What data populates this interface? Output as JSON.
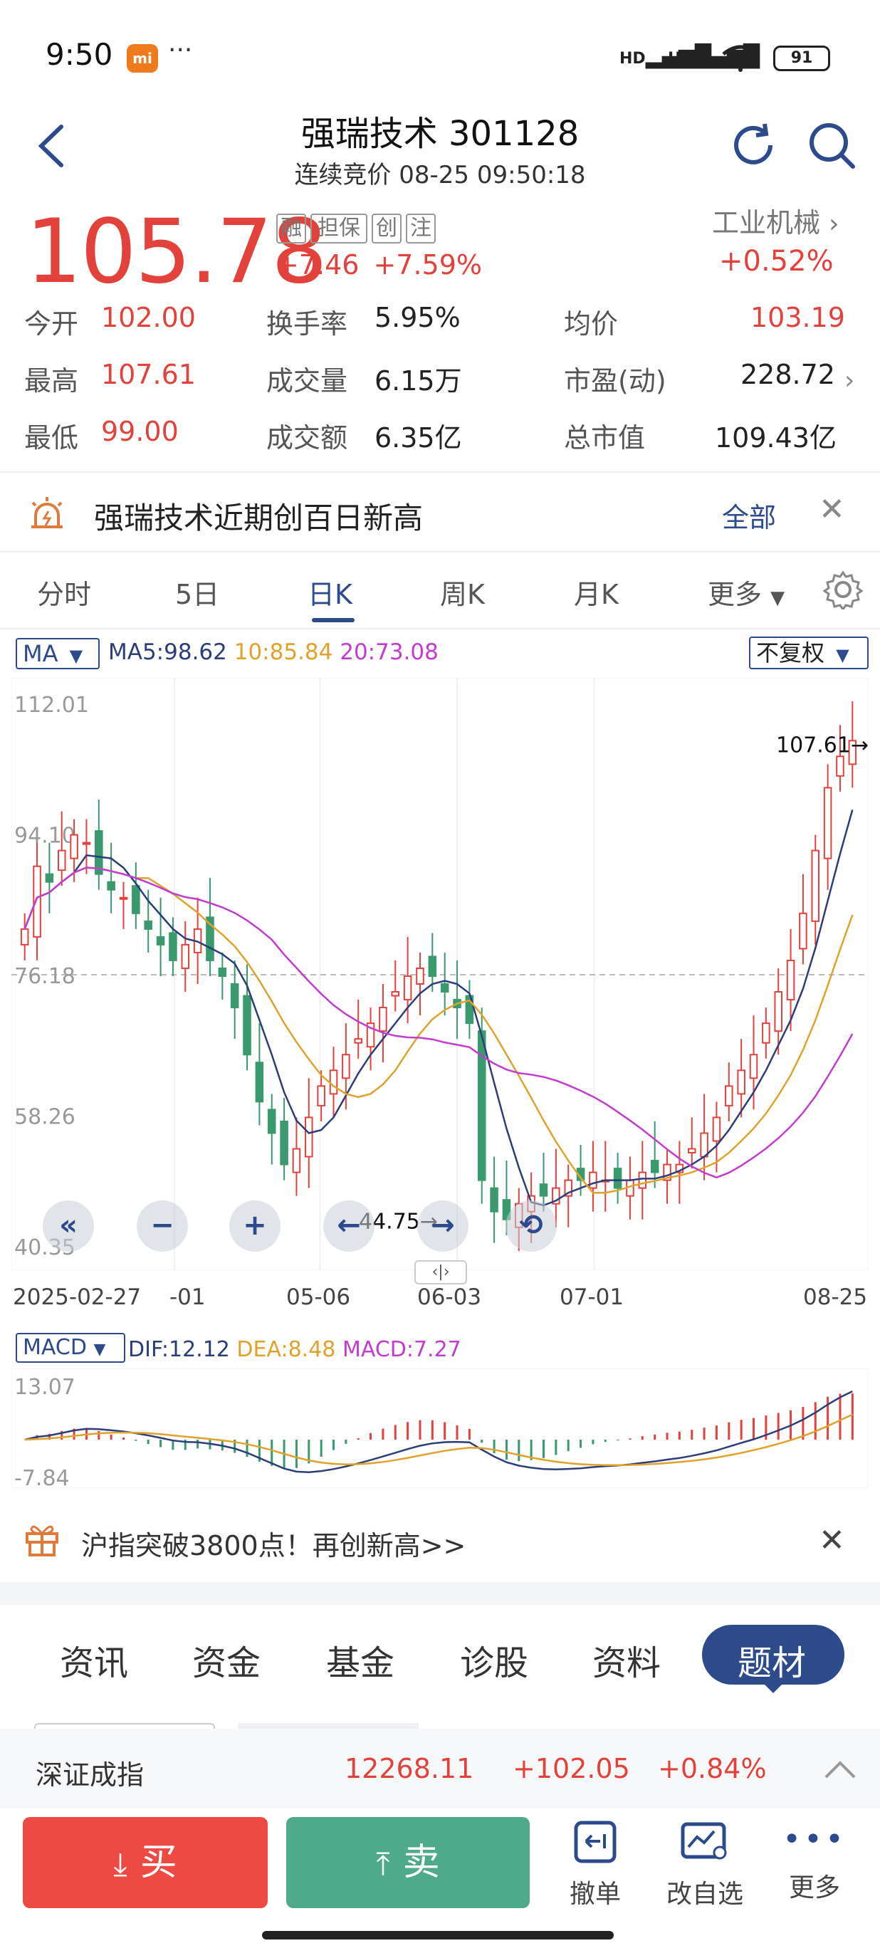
{
  "status_bar": {
    "time": "9:50",
    "logo": "mi",
    "dots": "···",
    "network1": "HD",
    "network2": "HD",
    "battery": "91"
  },
  "header": {
    "title": "强瑞技术 301128",
    "subtitle": "连续竞价 08-25 09:50:18"
  },
  "quote": {
    "price": "105.78",
    "tags": [
      "融",
      "担保",
      "创",
      "注"
    ],
    "change": "+7.46",
    "change_pct": "+7.59%",
    "industry": "工业机械",
    "industry_chg": "+0.52%"
  },
  "stats": [
    {
      "label": "今开",
      "value": "102.00",
      "color": "red"
    },
    {
      "label": "换手率",
      "value": "5.95%",
      "color": "dark"
    },
    {
      "label": "均价",
      "value": "103.19",
      "color": "red"
    },
    {
      "label": "最高",
      "value": "107.61",
      "color": "red"
    },
    {
      "label": "成交量",
      "value": "6.15万",
      "color": "dark"
    },
    {
      "label": "市盈(动)",
      "value": "228.72",
      "color": "dark"
    },
    {
      "label": "最低",
      "value": "99.00",
      "color": "red"
    },
    {
      "label": "成交额",
      "value": "6.35亿",
      "color": "dark"
    },
    {
      "label": "总市值",
      "value": "109.43亿",
      "color": "dark"
    }
  ],
  "announcement": {
    "text": "强瑞技术近期创百日新高",
    "all": "全部"
  },
  "chart_tabs": [
    "分时",
    "5日",
    "日K",
    "周K",
    "月K",
    "更多"
  ],
  "active_chart_tab": "日K",
  "chart_header": {
    "ma_select": "MA",
    "ma5": "MA5:98.62",
    "ma10": "10:85.84",
    "ma20": "20:73.08",
    "fq_select": "不复权",
    "macd_select": "MACD",
    "dif": "DIF:12.12",
    "dea": "DEA:8.48",
    "macd": "MACD:7.27"
  },
  "colors": {
    "up": "#e2423b",
    "down": "#3a9a6e",
    "ma5": "#2c3e7a",
    "ma10": "#e0a22a",
    "ma20": "#c23ccf",
    "navy": "#2c4a8c"
  },
  "chart_data": {
    "type": "candlestick",
    "title": "",
    "price_ticks": [
      "112.01",
      "94.10",
      "76.18",
      "58.26",
      "40.35"
    ],
    "ylim": [
      40.35,
      112.01
    ],
    "x_ticks": [
      "2025-02-27",
      "-01",
      "05-06",
      "06-03",
      "07-01",
      "08-25"
    ],
    "high_annotation": "107.61",
    "low_annotation": "44.75",
    "ref_line": 76.18,
    "close_series": [
      82,
      90,
      88,
      92,
      94,
      93,
      89,
      87,
      86,
      84,
      82,
      80,
      78,
      80,
      82,
      78,
      76,
      72,
      66,
      60,
      56,
      52,
      54,
      58,
      62,
      64,
      66,
      68,
      70,
      72,
      74,
      76,
      77,
      76,
      74,
      72,
      70,
      50,
      46,
      45,
      47,
      48,
      48,
      49,
      50,
      50,
      51,
      50,
      49,
      50,
      51,
      51,
      52,
      52,
      54,
      56,
      58,
      62,
      64,
      66,
      70,
      74,
      78,
      84,
      92,
      100,
      104,
      106
    ],
    "macd_ticks": [
      "13.07",
      "-7.84"
    ],
    "macd_ylim": [
      -7.84,
      13.07
    ]
  },
  "promo": {
    "text": "沪指突破3800点！再创新高>>"
  },
  "bottom_tabs": [
    "资讯",
    "资金",
    "基金",
    "诊股",
    "资料",
    "题材"
  ],
  "active_bottom_tab": "题材",
  "index_bar": {
    "name": "深证成指",
    "value": "12268.11",
    "change": "+102.05",
    "pct": "+0.84%"
  },
  "actions": {
    "buy": "买",
    "sell": "卖",
    "cancel": "撤单",
    "watch": "改自选",
    "more": "更多"
  }
}
